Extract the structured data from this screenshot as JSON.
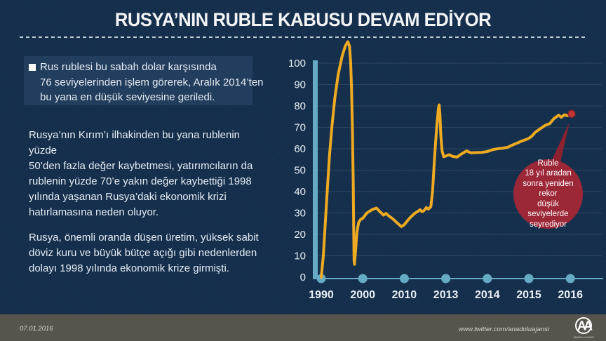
{
  "header": {
    "title": "RUSYA’NIN RUBLE KABUSU DEVAM EDİYOR"
  },
  "left": {
    "paragraphs": [
      {
        "text": "Rus rublesi bu sabah dolar karşısında\n76 seviyelerinden işlem görerek, Aralık 2014’ten\nbu yana en düşük seviyesine geriledi."
      },
      {
        "text": "Rusya’nın Kırım’ı ilhakinden bu yana rublenin yüzde\n50’den fazla değer kaybetmesi, yatırımcıların da\nrublenin yüzde 70’e yakın değer kaybettiği 1998\nyılında yaşanan Rusya’daki ekonomik krizi\nhatırlamasına neden oluyor."
      },
      {
        "text": "Rusya, önemli oranda düşen üretim, yüksek sabit\ndöviz kuru ve büyük bütçe açığı gibi nedenlerden\ndolayı 1998 yılında ekonomik krize girmişti."
      }
    ]
  },
  "chart_data": {
    "type": "line",
    "title": "",
    "xlabel": "",
    "ylabel": "",
    "x_tick_labels": [
      "1990",
      "2000",
      "2010",
      "2013",
      "2014",
      "2015",
      "2016"
    ],
    "y_ticks": [
      0,
      10,
      20,
      30,
      40,
      50,
      60,
      70,
      80,
      90,
      100
    ],
    "ylim": [
      0,
      110
    ],
    "grid": "horizontal",
    "legend": "none",
    "points_note": "pairs of [position-in-tick-units (0=1990 ... 6=2016), value]",
    "points": [
      [
        0,
        0
      ],
      [
        0.05,
        10
      ],
      [
        0.1,
        26
      ],
      [
        0.15,
        42
      ],
      [
        0.2,
        57
      ],
      [
        0.26,
        71
      ],
      [
        0.33,
        84
      ],
      [
        0.41,
        95
      ],
      [
        0.5,
        103
      ],
      [
        0.58,
        108
      ],
      [
        0.64,
        110
      ],
      [
        0.68,
        108
      ],
      [
        0.71,
        100
      ],
      [
        0.73,
        88
      ],
      [
        0.75,
        70
      ],
      [
        0.77,
        45
      ],
      [
        0.78,
        25
      ],
      [
        0.79,
        8
      ],
      [
        0.8,
        6
      ],
      [
        0.83,
        13
      ],
      [
        0.86,
        21
      ],
      [
        0.9,
        25.5
      ],
      [
        0.95,
        27
      ],
      [
        1.0,
        27.5
      ],
      [
        1.1,
        30
      ],
      [
        1.22,
        31.5
      ],
      [
        1.33,
        32.3
      ],
      [
        1.42,
        30.5
      ],
      [
        1.5,
        29
      ],
      [
        1.56,
        29.8
      ],
      [
        1.63,
        28.6
      ],
      [
        1.72,
        27.3
      ],
      [
        1.82,
        25.5
      ],
      [
        1.93,
        23.6
      ],
      [
        2.0,
        24.5
      ],
      [
        2.07,
        26.2
      ],
      [
        2.15,
        28
      ],
      [
        2.25,
        29.8
      ],
      [
        2.33,
        30.8
      ],
      [
        2.38,
        31.5
      ],
      [
        2.43,
        30.6
      ],
      [
        2.48,
        31.2
      ],
      [
        2.53,
        32.5
      ],
      [
        2.58,
        31.8
      ],
      [
        2.64,
        33
      ],
      [
        2.68,
        40
      ],
      [
        2.73,
        56
      ],
      [
        2.78,
        70
      ],
      [
        2.82,
        78.5
      ],
      [
        2.84,
        80.5
      ],
      [
        2.86,
        76
      ],
      [
        2.88,
        66
      ],
      [
        2.91,
        59
      ],
      [
        2.95,
        56.3
      ],
      [
        3.0,
        56.6
      ],
      [
        3.08,
        57.2
      ],
      [
        3.17,
        56.4
      ],
      [
        3.27,
        56.1
      ],
      [
        3.38,
        57.6
      ],
      [
        3.5,
        59
      ],
      [
        3.6,
        58.1
      ],
      [
        3.72,
        58.2
      ],
      [
        3.86,
        58.3
      ],
      [
        4.0,
        58.7
      ],
      [
        4.13,
        59.6
      ],
      [
        4.25,
        60
      ],
      [
        4.38,
        60.3
      ],
      [
        4.49,
        60.7
      ],
      [
        4.6,
        61.7
      ],
      [
        4.71,
        62.6
      ],
      [
        4.83,
        63.6
      ],
      [
        4.93,
        64.3
      ],
      [
        5.0,
        64.9
      ],
      [
        5.06,
        65.7
      ],
      [
        5.16,
        67.8
      ],
      [
        5.27,
        69.3
      ],
      [
        5.39,
        70.9
      ],
      [
        5.5,
        71.7
      ],
      [
        5.6,
        74
      ],
      [
        5.72,
        75.7
      ],
      [
        5.78,
        74.7
      ],
      [
        5.86,
        75.9
      ],
      [
        5.93,
        75.4
      ],
      [
        6.03,
        76.3
      ]
    ],
    "annotation": {
      "text": "Ruble\n18 yıl aradan\nsonra yeniden rekor\ndüşük seviyelerde\nseyrediyor"
    },
    "colors": {
      "line": "#eeaa21",
      "axis": "#64abc3",
      "end_dot": "#c43535",
      "annotation_bg": "#9c2737",
      "annotation_dark": "#8c2130",
      "text": "#e8eef5"
    }
  },
  "footer": {
    "date": "07.01.2016",
    "source": "www.twitter.com/anadoluajansi",
    "logo_text": "AA",
    "logo_caption": "ANADOLU AJANSI"
  }
}
